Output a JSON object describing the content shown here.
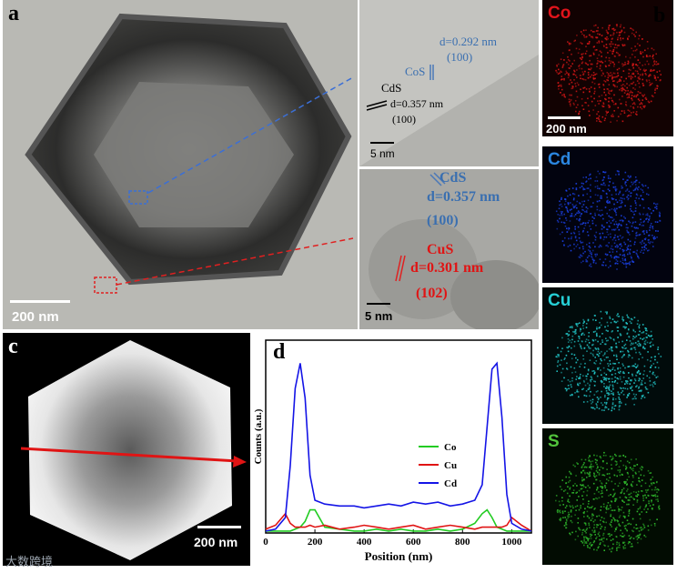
{
  "panels": {
    "a": {
      "letter": "a",
      "scale_bar": "200 nm"
    },
    "b": {
      "letter": "b",
      "maps": [
        {
          "element": "Co",
          "color": "#e0141b",
          "dot": "#d11616",
          "bg": "#120202",
          "scale_bar": "200 nm"
        },
        {
          "element": "Cd",
          "color": "#2b86e0",
          "dot": "#1a3fe0",
          "bg": "#02030f",
          "scale_bar": ""
        },
        {
          "element": "Cu",
          "color": "#26d0d6",
          "dot": "#22c7c9",
          "bg": "#010b0b",
          "scale_bar": ""
        },
        {
          "element": "S",
          "color": "#52c43c",
          "dot": "#2fb82c",
          "bg": "#020c02",
          "scale_bar": ""
        }
      ]
    },
    "hrtem_top": {
      "cos_d": "d=0.292 nm",
      "cos_hkl": "(100)",
      "cos_label": "CoS",
      "cds_label": "CdS",
      "cds_d": "d=0.357 nm",
      "cds_hkl": "(100)",
      "scale_bar": "5 nm"
    },
    "hrtem_bottom": {
      "cds_label": "CdS",
      "cds_d": "d=0.357 nm",
      "cds_hkl": "(100)",
      "cus_label": "CuS",
      "cus_d": "d=0.301 nm",
      "cus_hkl": "(102)",
      "scale_bar": "5 nm"
    },
    "c": {
      "letter": "c",
      "scale_bar": "200 nm"
    },
    "d": {
      "letter": "d"
    }
  },
  "chart_data": {
    "type": "line",
    "xlabel": "Position (nm)",
    "ylabel": "Counts (a.u.)",
    "xlim": [
      0,
      1080
    ],
    "xticks": [
      0,
      200,
      400,
      600,
      800,
      1000
    ],
    "ylim": [
      0,
      100
    ],
    "legend_position": "center-right",
    "x": [
      0,
      40,
      80,
      100,
      120,
      140,
      160,
      180,
      200,
      240,
      300,
      360,
      400,
      450,
      500,
      550,
      600,
      650,
      700,
      750,
      800,
      850,
      880,
      900,
      920,
      940,
      960,
      980,
      1000,
      1040,
      1080
    ],
    "series": [
      {
        "name": "Co",
        "color": "#22cc22",
        "values": [
          1,
          1,
          1,
          1,
          2,
          3,
          6,
          12,
          12,
          3,
          2,
          1,
          1,
          2,
          1,
          2,
          1,
          1,
          2,
          1,
          2,
          5,
          10,
          12,
          8,
          3,
          2,
          1,
          1,
          1,
          1
        ]
      },
      {
        "name": "Cu",
        "color": "#e01414",
        "values": [
          2,
          4,
          10,
          5,
          3,
          3,
          3,
          4,
          3,
          4,
          2,
          3,
          4,
          3,
          2,
          3,
          4,
          2,
          3,
          4,
          3,
          2,
          3,
          3,
          3,
          3,
          3,
          4,
          8,
          4,
          1
        ]
      },
      {
        "name": "Cd",
        "color": "#1414e6",
        "values": [
          1,
          2,
          8,
          35,
          75,
          88,
          70,
          30,
          17,
          15,
          14,
          14,
          13,
          14,
          15,
          14,
          16,
          15,
          16,
          14,
          15,
          17,
          25,
          55,
          85,
          88,
          60,
          20,
          5,
          2,
          1
        ]
      }
    ]
  },
  "watermark": "大数跨境"
}
